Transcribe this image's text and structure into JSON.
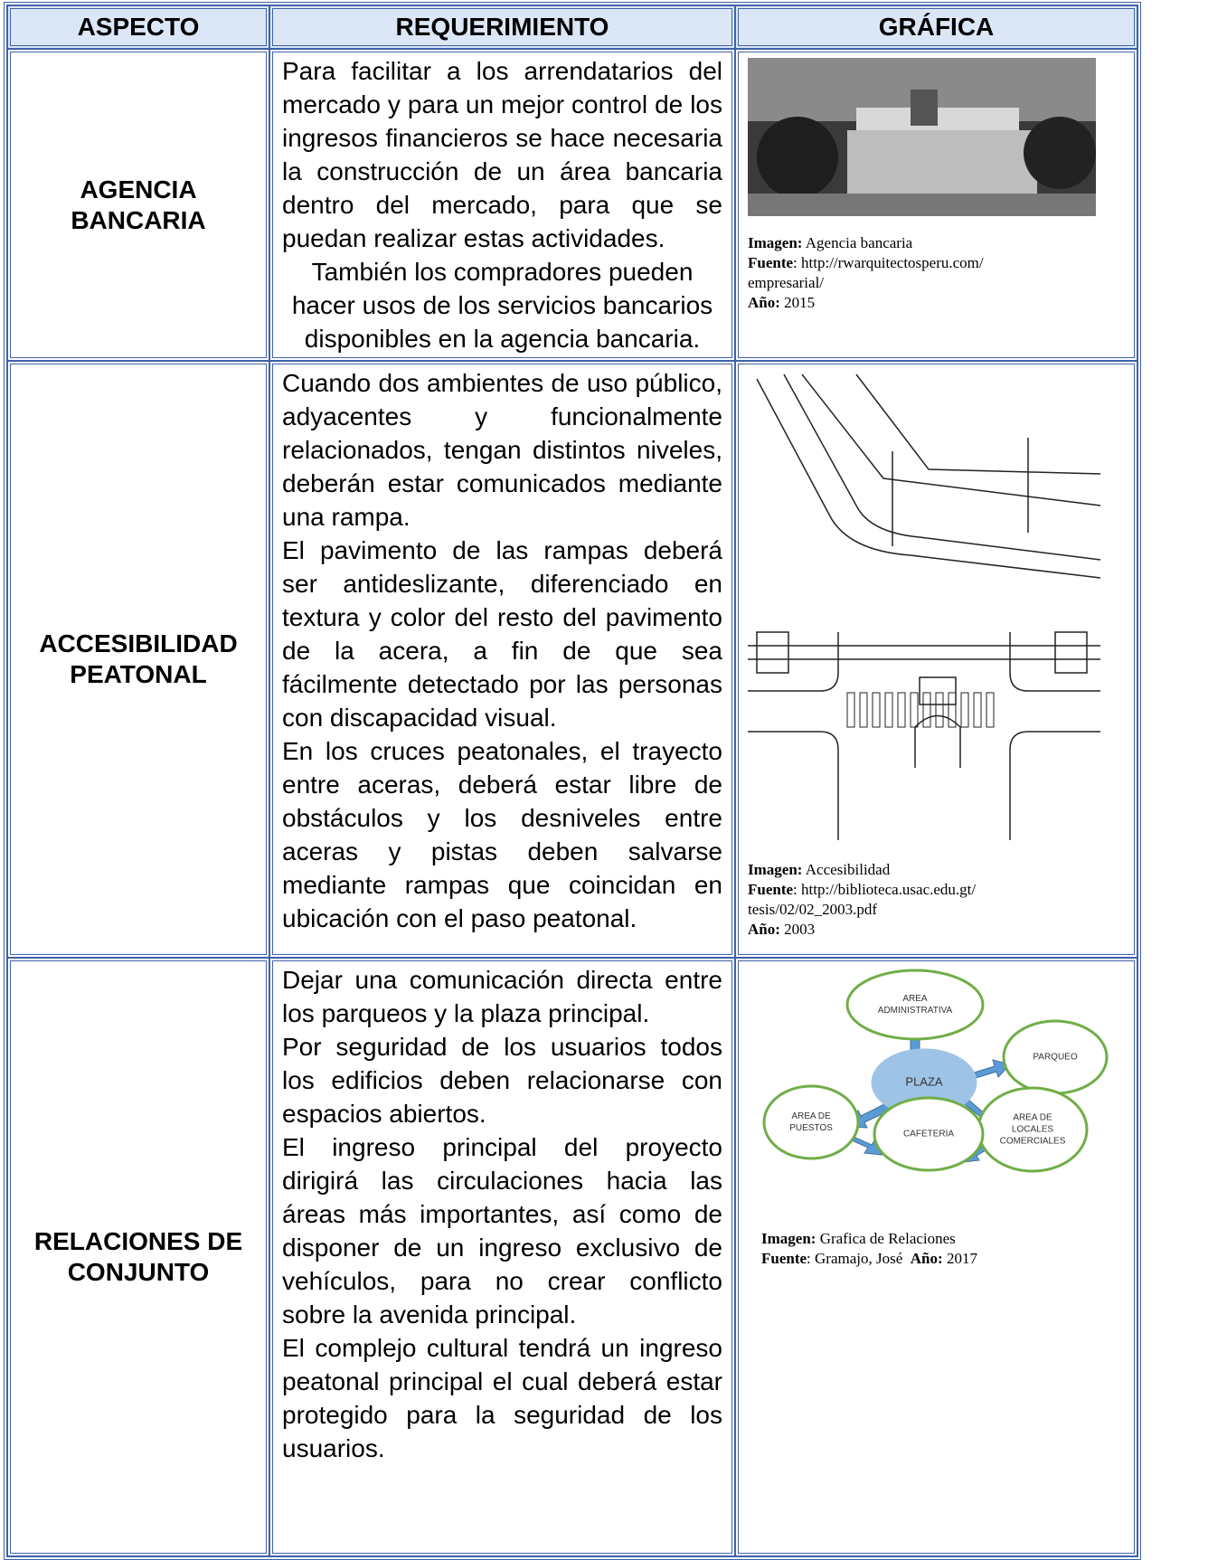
{
  "table": {
    "header": [
      "ASPECTO",
      "REQUERIMIENTO",
      "GRÁFICA"
    ],
    "rows": [
      {
        "aspect": [
          "AGENCIA",
          "BANCARIA"
        ],
        "requirement": [
          {
            "text": "Para facilitar a los arrendatarios del mercado y para un mejor control de los ingresos financieros se hace necesaria la construcción de un área bancaria dentro del mercado, para que se puedan realizar estas actividades.",
            "align": "justify"
          },
          {
            "text": "También los compradores pueden hacer usos de los servicios bancarios disponibles en la agencia bancaria.",
            "align": "center"
          }
        ],
        "caption": [
          [
            {
              "text": "Imagen:",
              "bold": true
            },
            {
              "text": " Agencia bancaria",
              "bold": false
            }
          ],
          [
            {
              "text": "Fuente",
              "bold": true
            },
            {
              "text": ": http://rwarquitectosperu.com/",
              "bold": false
            }
          ],
          [
            {
              "text": "empresarial/",
              "bold": false
            }
          ],
          [
            {
              "text": "Año:",
              "bold": true
            },
            {
              "text": " 2015",
              "bold": false
            }
          ]
        ]
      },
      {
        "aspect": [
          "ACCESIBILIDAD",
          "PEATONAL"
        ],
        "requirement": [
          {
            "text": "Cuando dos ambientes de uso público, adyacentes y funcionalmente relacionados, tengan distintos niveles, deberán estar comunicados mediante una rampa.",
            "align": "justify"
          },
          {
            "text": "El pavimento de las rampas deberá ser antideslizante, diferenciado en textura y color del resto del pavimento de la acera, a fin de que sea fácilmente detectado por las personas con discapacidad visual.",
            "align": "justify"
          },
          {
            "text": "En los cruces peatonales, el trayecto entre aceras, deberá estar libre de obstáculos y los desniveles entre aceras y pistas deben salvarse mediante rampas que coincidan en ubicación con el paso peatonal.",
            "align": "justify"
          }
        ],
        "caption": [
          [
            {
              "text": "Imagen:",
              "bold": true
            },
            {
              "text": " Accesibilidad",
              "bold": false
            }
          ],
          [
            {
              "text": "Fuente",
              "bold": true
            },
            {
              "text": ": http://biblioteca.usac.edu.gt/",
              "bold": false
            }
          ],
          [
            {
              "text": "tesis/02/02_2003.pdf",
              "bold": false
            }
          ],
          [
            {
              "text": "Año:",
              "bold": true
            },
            {
              "text": " 2003",
              "bold": false
            }
          ]
        ]
      },
      {
        "aspect": [
          "RELACIONES DE",
          "CONJUNTO"
        ],
        "requirement": [
          {
            "text": "Dejar una comunicación directa entre los parqueos y la plaza principal.",
            "align": "justify"
          },
          {
            "text": "Por seguridad de los usuarios todos los edificios deben relacionarse con espacios abiertos.",
            "align": "justify"
          },
          {
            "text": "El ingreso principal del proyecto dirigirá las circulaciones hacia las áreas más importantes, así como de disponer de un ingreso exclusivo de vehículos, para no crear conflicto sobre la avenida principal.",
            "align": "justify"
          },
          {
            "text": "El complejo cultural tendrá un ingreso peatonal principal el cual deberá estar protegido para la seguridad de los usuarios.",
            "align": "justify"
          }
        ],
        "caption": [
          [
            {
              "text": "Imagen:",
              "bold": true
            },
            {
              "text": " Grafica de Relaciones",
              "bold": false
            }
          ],
          [
            {
              "text": "Fuente",
              "bold": true
            },
            {
              "text": ": Gramajo, José  ",
              "bold": false
            },
            {
              "text": "Año:",
              "bold": true
            },
            {
              "text": " 2017",
              "bold": false
            }
          ]
        ],
        "diagram": [
          [
            "AREA",
            "ADMINISTRATIVA"
          ],
          [
            "PARQUEO"
          ],
          [
            "PLAZA"
          ],
          [
            "AREA DE",
            "PUESTOS"
          ],
          [
            "AREA DE",
            "LOCALES",
            "COMERCIALES"
          ],
          [
            "CAFETERIA"
          ]
        ]
      }
    ]
  }
}
